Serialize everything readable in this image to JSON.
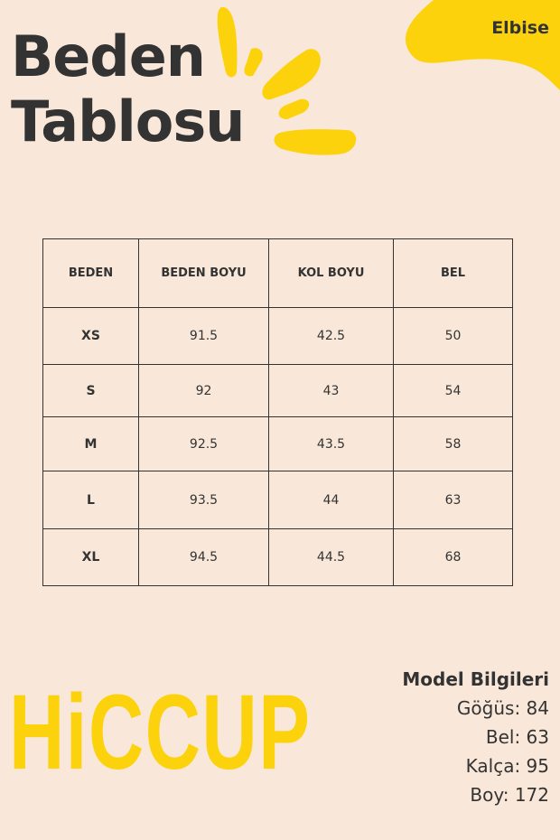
{
  "header": {
    "title_line1": "Beden",
    "title_line2": "Tablosu",
    "category": "Elbise"
  },
  "colors": {
    "background": "#f9e8d9",
    "accent": "#fbd20c",
    "text": "#333333"
  },
  "table": {
    "columns": [
      "BEDEN",
      "BEDEN BOYU",
      "KOL BOYU",
      "BEL"
    ],
    "rows": [
      [
        "XS",
        "91.5",
        "42.5",
        "50"
      ],
      [
        "S",
        "92",
        "43",
        "54"
      ],
      [
        "M",
        "92.5",
        "43.5",
        "58"
      ],
      [
        "L",
        "93.5",
        "44",
        "63"
      ],
      [
        "XL",
        "94.5",
        "44.5",
        "68"
      ]
    ]
  },
  "brand": {
    "logo": "HiCCUP"
  },
  "model": {
    "heading": "Model Bilgileri",
    "items": [
      "Göğüs: 84",
      "Bel: 63",
      "Kalça: 95",
      "Boy: 172"
    ]
  }
}
